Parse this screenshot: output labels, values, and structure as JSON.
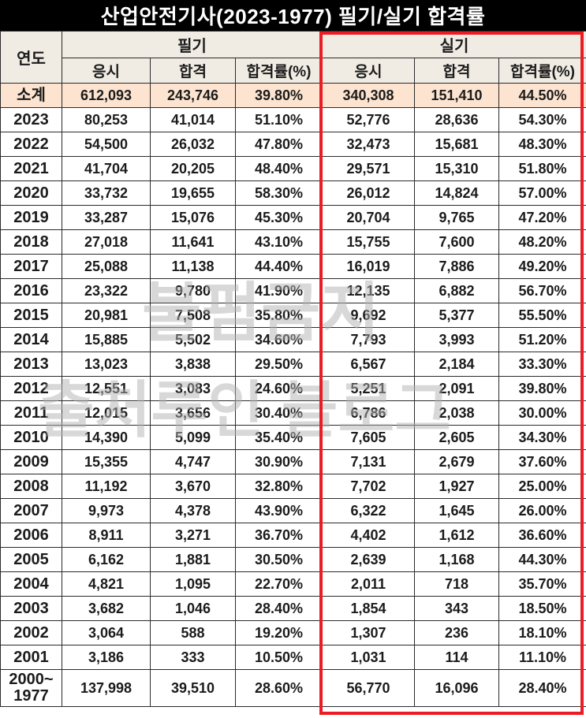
{
  "title": "산업안전기사(2023-1977) 필기/실기 합격률",
  "watermark": {
    "line1": "불펌금지",
    "line2": "출처루인 블로그"
  },
  "colors": {
    "title_bg": "#000000",
    "title_fg": "#ffffff",
    "header_bg": "#f0ece3",
    "subtotal_bg": "#fce4d0",
    "highlight_border": "#ec1c24",
    "cell_border": "#2a2a2a"
  },
  "chart_data": {
    "type": "table",
    "title": "산업안전기사(2023-1977) 필기/실기 합격률",
    "column_groups": [
      {
        "label": "연도",
        "span": 1
      },
      {
        "label": "필기",
        "span": 3
      },
      {
        "label": "실기",
        "span": 3
      }
    ],
    "sub_headers": [
      "응시",
      "합격",
      "합격률(%)"
    ],
    "highlighted_group": "실기",
    "rows": [
      {
        "year": "소계",
        "subtotal": true,
        "cells": [
          "612,093",
          "243,746",
          "39.80%",
          "340,308",
          "151,410",
          "44.50%"
        ]
      },
      {
        "year": "2023",
        "subtotal": false,
        "cells": [
          "80,253",
          "41,014",
          "51.10%",
          "52,776",
          "28,636",
          "54.30%"
        ]
      },
      {
        "year": "2022",
        "subtotal": false,
        "cells": [
          "54,500",
          "26,032",
          "47.80%",
          "32,473",
          "15,681",
          "48.30%"
        ]
      },
      {
        "year": "2021",
        "subtotal": false,
        "cells": [
          "41,704",
          "20,205",
          "48.40%",
          "29,571",
          "15,310",
          "51.80%"
        ]
      },
      {
        "year": "2020",
        "subtotal": false,
        "cells": [
          "33,732",
          "19,655",
          "58.30%",
          "26,012",
          "14,824",
          "57.00%"
        ]
      },
      {
        "year": "2019",
        "subtotal": false,
        "cells": [
          "33,287",
          "15,076",
          "45.30%",
          "20,704",
          "9,765",
          "47.20%"
        ]
      },
      {
        "year": "2018",
        "subtotal": false,
        "cells": [
          "27,018",
          "11,641",
          "43.10%",
          "15,755",
          "7,600",
          "48.20%"
        ]
      },
      {
        "year": "2017",
        "subtotal": false,
        "cells": [
          "25,088",
          "11,138",
          "44.40%",
          "16,019",
          "7,886",
          "49.20%"
        ]
      },
      {
        "year": "2016",
        "subtotal": false,
        "cells": [
          "23,322",
          "9,780",
          "41.90%",
          "12,135",
          "6,882",
          "56.70%"
        ]
      },
      {
        "year": "2015",
        "subtotal": false,
        "cells": [
          "20,981",
          "7,508",
          "35.80%",
          "9,692",
          "5,377",
          "55.50%"
        ]
      },
      {
        "year": "2014",
        "subtotal": false,
        "cells": [
          "15,885",
          "5,502",
          "34.60%",
          "7,793",
          "3,993",
          "51.20%"
        ]
      },
      {
        "year": "2013",
        "subtotal": false,
        "cells": [
          "13,023",
          "3,838",
          "29.50%",
          "6,567",
          "2,184",
          "33.30%"
        ]
      },
      {
        "year": "2012",
        "subtotal": false,
        "cells": [
          "12,551",
          "3,083",
          "24.60%",
          "5,251",
          "2,091",
          "39.80%"
        ]
      },
      {
        "year": "2011",
        "subtotal": false,
        "cells": [
          "12,015",
          "3,656",
          "30.40%",
          "6,786",
          "2,038",
          "30.00%"
        ]
      },
      {
        "year": "2010",
        "subtotal": false,
        "cells": [
          "14,390",
          "5,099",
          "35.40%",
          "7,605",
          "2,605",
          "34.30%"
        ]
      },
      {
        "year": "2009",
        "subtotal": false,
        "cells": [
          "15,355",
          "4,747",
          "30.90%",
          "7,131",
          "2,679",
          "37.60%"
        ]
      },
      {
        "year": "2008",
        "subtotal": false,
        "cells": [
          "11,192",
          "3,670",
          "32.80%",
          "7,702",
          "1,927",
          "25.00%"
        ]
      },
      {
        "year": "2007",
        "subtotal": false,
        "cells": [
          "9,973",
          "4,378",
          "43.90%",
          "6,322",
          "1,645",
          "26.00%"
        ]
      },
      {
        "year": "2006",
        "subtotal": false,
        "cells": [
          "8,911",
          "3,271",
          "36.70%",
          "4,402",
          "1,612",
          "36.60%"
        ]
      },
      {
        "year": "2005",
        "subtotal": false,
        "cells": [
          "6,162",
          "1,881",
          "30.50%",
          "2,639",
          "1,168",
          "44.30%"
        ]
      },
      {
        "year": "2004",
        "subtotal": false,
        "cells": [
          "4,821",
          "1,095",
          "22.70%",
          "2,011",
          "718",
          "35.70%"
        ]
      },
      {
        "year": "2003",
        "subtotal": false,
        "cells": [
          "3,682",
          "1,046",
          "28.40%",
          "1,854",
          "343",
          "18.50%"
        ]
      },
      {
        "year": "2002",
        "subtotal": false,
        "cells": [
          "3,064",
          "588",
          "19.20%",
          "1,307",
          "236",
          "18.10%"
        ]
      },
      {
        "year": "2001",
        "subtotal": false,
        "cells": [
          "3,186",
          "333",
          "10.50%",
          "1,031",
          "114",
          "11.10%"
        ]
      },
      {
        "year": "2000~\n1977",
        "subtotal": false,
        "cells": [
          "137,998",
          "39,510",
          "28.60%",
          "56,770",
          "16,096",
          "28.40%"
        ]
      }
    ]
  }
}
